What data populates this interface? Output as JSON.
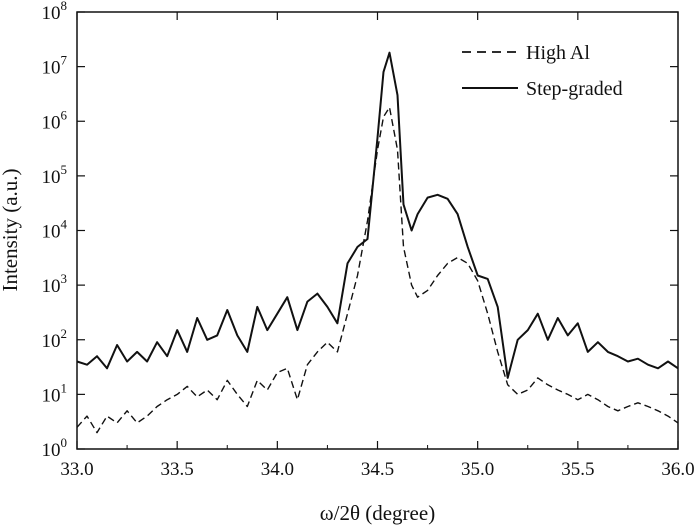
{
  "chart_data": {
    "type": "line",
    "xlabel": "ω/2θ (degree)",
    "ylabel": "Intensity (a.u.)",
    "xlim": [
      33.0,
      36.0
    ],
    "ylim": [
      1,
      100000000
    ],
    "yscale": "log",
    "grid": false,
    "legend_position": "top-right",
    "x_ticks": [
      "33.0",
      "33.5",
      "34.0",
      "34.5",
      "35.0",
      "35.5",
      "36.0"
    ],
    "y_ticks": [
      {
        "base": "10",
        "exp": "0"
      },
      {
        "base": "10",
        "exp": "1"
      },
      {
        "base": "10",
        "exp": "2"
      },
      {
        "base": "10",
        "exp": "3"
      },
      {
        "base": "10",
        "exp": "4"
      },
      {
        "base": "10",
        "exp": "5"
      },
      {
        "base": "10",
        "exp": "6"
      },
      {
        "base": "10",
        "exp": "7"
      },
      {
        "base": "10",
        "exp": "8"
      }
    ],
    "series": [
      {
        "name": "High Al",
        "style": "dashed",
        "x": [
          33.0,
          33.05,
          33.1,
          33.15,
          33.2,
          33.25,
          33.3,
          33.35,
          33.4,
          33.45,
          33.5,
          33.55,
          33.6,
          33.65,
          33.7,
          33.75,
          33.8,
          33.85,
          33.9,
          33.95,
          34.0,
          34.05,
          34.1,
          34.15,
          34.2,
          34.25,
          34.3,
          34.35,
          34.4,
          34.45,
          34.5,
          34.53,
          34.56,
          34.6,
          34.63,
          34.67,
          34.7,
          34.75,
          34.8,
          34.85,
          34.9,
          34.95,
          35.0,
          35.05,
          35.1,
          35.15,
          35.2,
          35.25,
          35.3,
          35.35,
          35.4,
          35.45,
          35.5,
          35.55,
          35.6,
          35.65,
          35.7,
          35.75,
          35.8,
          35.85,
          35.9,
          35.95,
          36.0
        ],
        "values": [
          2.5,
          4,
          2,
          4,
          3,
          5,
          3,
          4,
          6,
          8,
          10,
          14,
          9,
          12,
          8,
          18,
          10,
          6,
          18,
          12,
          25,
          30,
          8,
          35,
          60,
          90,
          60,
          300,
          1500,
          15000,
          300000,
          1200000,
          1800000,
          300000,
          5000,
          1000,
          600,
          800,
          1500,
          2500,
          3200,
          2500,
          1200,
          300,
          60,
          15,
          10,
          12,
          20,
          15,
          12,
          10,
          8,
          10,
          8,
          6,
          5,
          6,
          7,
          6,
          5,
          4,
          3
        ]
      },
      {
        "name": "Step-graded",
        "style": "solid",
        "x": [
          33.0,
          33.05,
          33.1,
          33.15,
          33.2,
          33.25,
          33.3,
          33.35,
          33.4,
          33.45,
          33.5,
          33.55,
          33.6,
          33.65,
          33.7,
          33.75,
          33.8,
          33.85,
          33.9,
          33.95,
          34.0,
          34.05,
          34.1,
          34.15,
          34.2,
          34.25,
          34.3,
          34.35,
          34.4,
          34.45,
          34.5,
          34.53,
          34.56,
          34.6,
          34.63,
          34.67,
          34.7,
          34.75,
          34.8,
          34.85,
          34.9,
          34.95,
          35.0,
          35.05,
          35.1,
          35.15,
          35.2,
          35.25,
          35.3,
          35.35,
          35.4,
          35.45,
          35.5,
          35.55,
          35.6,
          35.65,
          35.7,
          35.75,
          35.8,
          35.85,
          35.9,
          35.95,
          36.0
        ],
        "values": [
          40,
          35,
          50,
          30,
          80,
          40,
          60,
          40,
          90,
          50,
          150,
          60,
          250,
          100,
          120,
          350,
          120,
          60,
          400,
          150,
          300,
          600,
          150,
          500,
          700,
          400,
          200,
          2500,
          5000,
          7000,
          500000,
          8000000,
          18000000,
          3000000,
          30000,
          10000,
          20000,
          40000,
          45000,
          38000,
          20000,
          5000,
          1500,
          1300,
          400,
          20,
          100,
          150,
          300,
          100,
          250,
          120,
          200,
          60,
          90,
          60,
          50,
          40,
          45,
          35,
          30,
          40,
          30
        ]
      }
    ]
  }
}
